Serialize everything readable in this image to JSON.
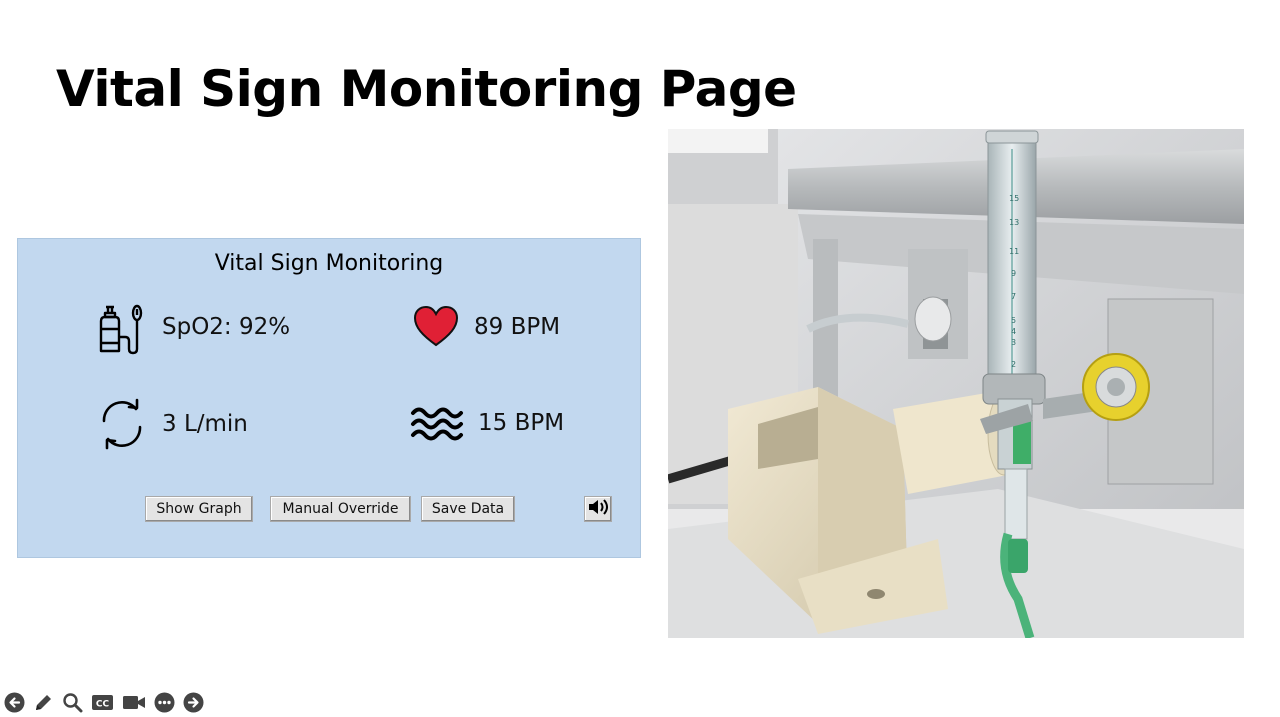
{
  "slide": {
    "title": "Vital Sign Monitoring Page"
  },
  "panel": {
    "title": "Vital Sign Monitoring",
    "spo2": {
      "icon": "oxygen-tank-icon",
      "text": "SpO2: 92%"
    },
    "heart_rate": {
      "icon": "heart-icon",
      "text": "89 BPM"
    },
    "flow_rate": {
      "icon": "refresh-cycle-icon",
      "text": "3 L/min"
    },
    "resp_rate": {
      "icon": "waves-icon",
      "text": "15 BPM"
    },
    "buttons": {
      "show_graph": "Show Graph",
      "manual_override": "Manual Override",
      "save_data": "Save Data"
    },
    "sound_icon": "speaker-icon"
  },
  "photo": {
    "flowmeter_scale": [
      "15",
      "13",
      "11",
      "9",
      "7",
      "5",
      "4",
      "3",
      "2"
    ]
  },
  "toolbar": {
    "icons": [
      "previous-icon",
      "pen-icon",
      "zoom-icon",
      "captions-icon",
      "video-icon",
      "more-icon",
      "next-icon"
    ]
  },
  "colors": {
    "panel_bg": "#c2d8ef",
    "heart": "#e02035"
  }
}
